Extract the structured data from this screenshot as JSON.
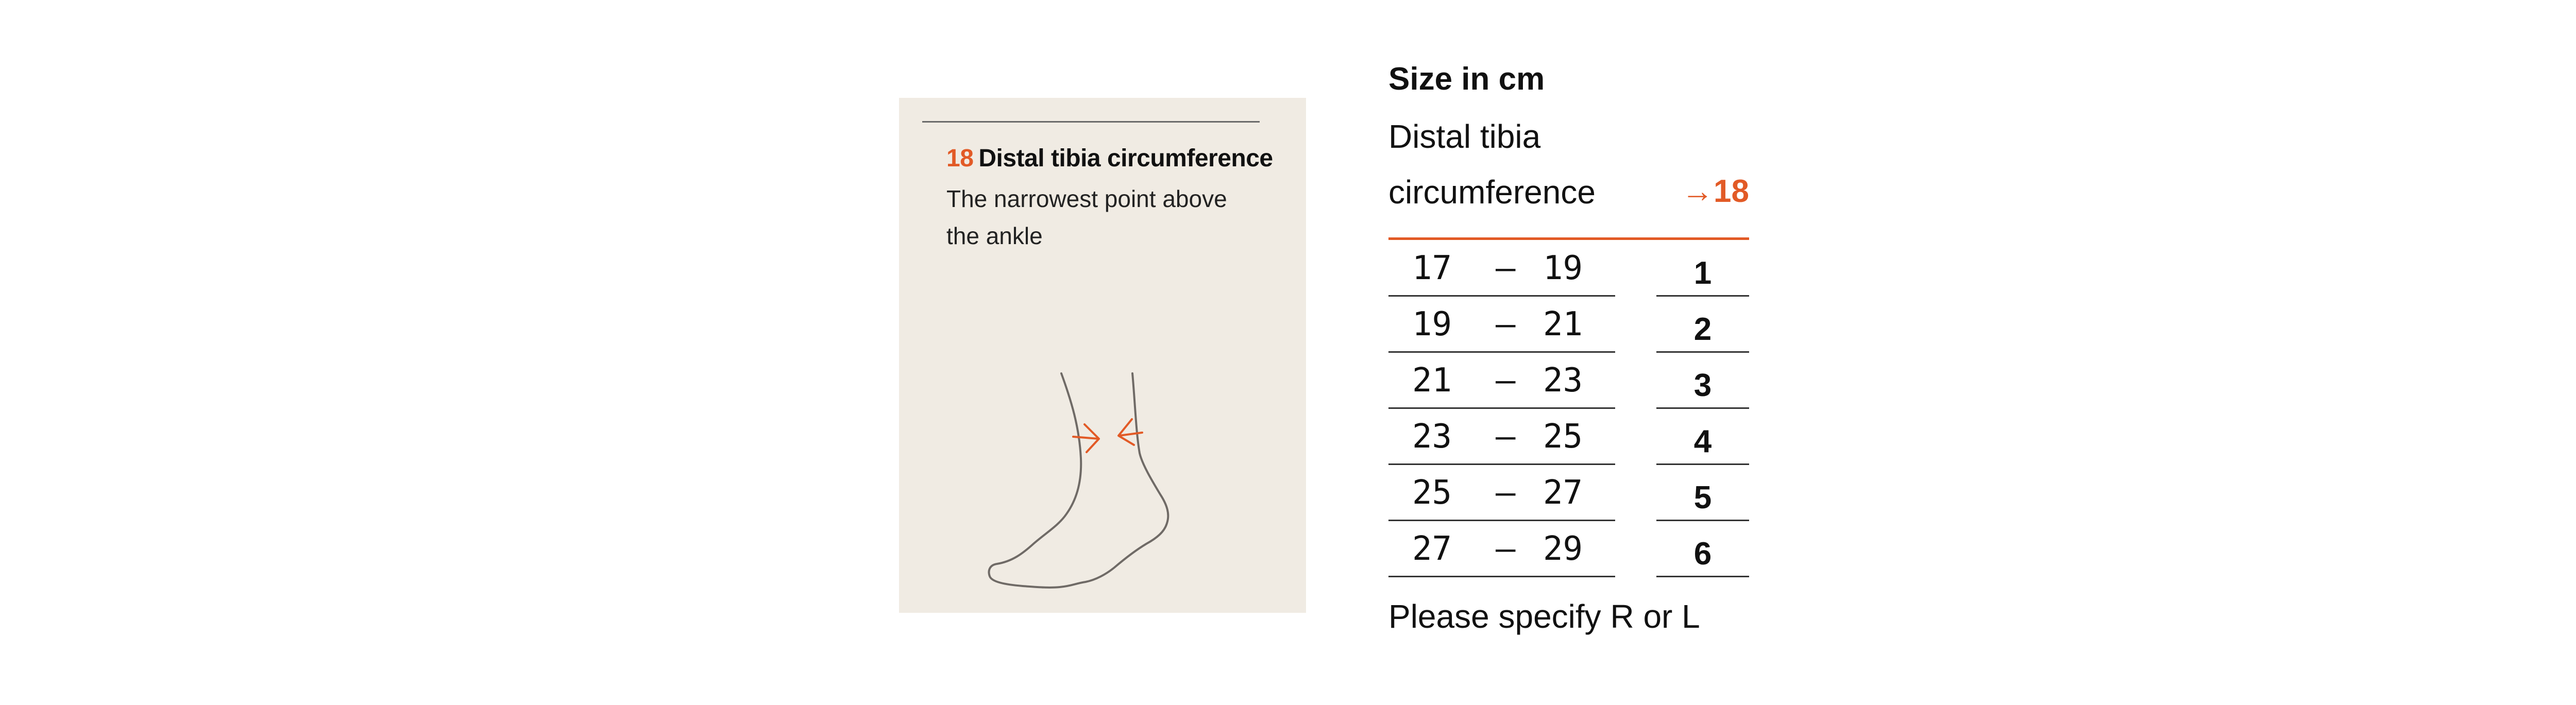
{
  "card": {
    "code": "18",
    "title": "Distal tibia circumference",
    "description": "The narrowest point above the ankle",
    "illustration_icon": "ankle-measurement-icon",
    "accent_color": "#e25a26"
  },
  "table": {
    "title": "Size in cm",
    "column_label_line1": "Distal tibia",
    "column_label_line2": "circumference",
    "code_ref": "→18",
    "rows": [
      {
        "from": "17",
        "dash": "–",
        "to": "19",
        "size": "1"
      },
      {
        "from": "19",
        "dash": "–",
        "to": "21",
        "size": "2"
      },
      {
        "from": "21",
        "dash": "–",
        "to": "23",
        "size": "3"
      },
      {
        "from": "23",
        "dash": "–",
        "to": "25",
        "size": "4"
      },
      {
        "from": "25",
        "dash": "–",
        "to": "27",
        "size": "5"
      },
      {
        "from": "27",
        "dash": "–",
        "to": "29",
        "size": "6"
      }
    ],
    "footer": "Please specify R or L"
  }
}
